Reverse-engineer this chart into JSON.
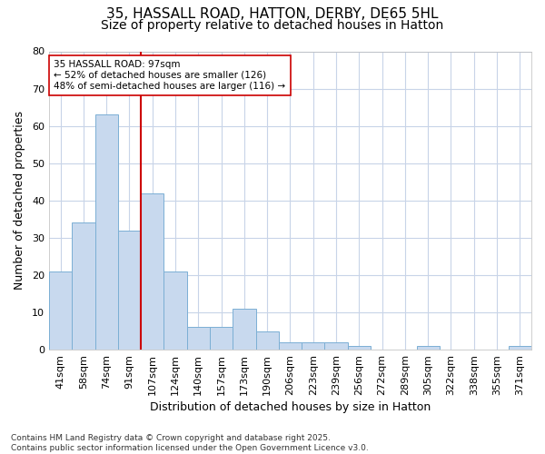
{
  "title_line1": "35, HASSALL ROAD, HATTON, DERBY, DE65 5HL",
  "title_line2": "Size of property relative to detached houses in Hatton",
  "xlabel": "Distribution of detached houses by size in Hatton",
  "ylabel": "Number of detached properties",
  "categories": [
    "41sqm",
    "58sqm",
    "74sqm",
    "91sqm",
    "107sqm",
    "124sqm",
    "140sqm",
    "157sqm",
    "173sqm",
    "190sqm",
    "206sqm",
    "223sqm",
    "239sqm",
    "256sqm",
    "272sqm",
    "289sqm",
    "305sqm",
    "322sqm",
    "338sqm",
    "355sqm",
    "371sqm"
  ],
  "values": [
    21,
    34,
    63,
    32,
    42,
    21,
    6,
    6,
    11,
    5,
    2,
    2,
    2,
    1,
    0,
    0,
    1,
    0,
    0,
    0,
    1
  ],
  "bar_color": "#c8d9ee",
  "bar_edge_color": "#7bafd4",
  "vline_color": "#cc0000",
  "annotation_text": "35 HASSALL ROAD: 97sqm\n← 52% of detached houses are smaller (126)\n48% of semi-detached houses are larger (116) →",
  "annotation_box_color": "#ffffff",
  "annotation_box_edge": "#cc0000",
  "ylim": [
    0,
    80
  ],
  "yticks": [
    0,
    10,
    20,
    30,
    40,
    50,
    60,
    70,
    80
  ],
  "plot_bg_color": "#ffffff",
  "grid_color": "#c8d4e8",
  "footer_text": "Contains HM Land Registry data © Crown copyright and database right 2025.\nContains public sector information licensed under the Open Government Licence v3.0.",
  "title_fontsize": 11,
  "subtitle_fontsize": 10,
  "axis_label_fontsize": 9,
  "tick_fontsize": 8
}
